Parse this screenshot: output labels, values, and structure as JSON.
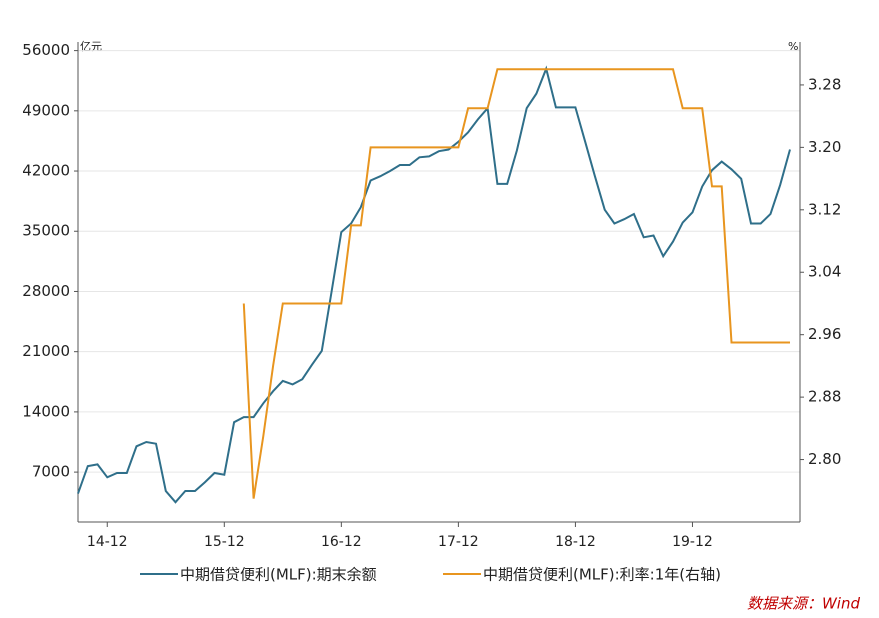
{
  "chart_data": {
    "type": "line",
    "categories": [
      null,
      null,
      null,
      "14-12",
      null,
      null,
      null,
      null,
      null,
      null,
      null,
      null,
      null,
      null,
      null,
      "15-12",
      null,
      null,
      null,
      null,
      null,
      null,
      null,
      null,
      null,
      null,
      null,
      "16-12",
      null,
      null,
      null,
      null,
      null,
      null,
      null,
      null,
      null,
      null,
      null,
      "17-12",
      null,
      null,
      null,
      null,
      null,
      null,
      null,
      null,
      null,
      null,
      null,
      "18-12",
      null,
      null,
      null,
      null,
      null,
      null,
      null,
      null,
      null,
      null,
      null,
      "19-12",
      null,
      null,
      null,
      null,
      null,
      null,
      null,
      null,
      null,
      null
    ],
    "series": [
      {
        "name": "中期借贷便利(MLF):期末余额",
        "color": "#2f6f8a",
        "axis": "y",
        "values": [
          4500,
          7700,
          7900,
          6400,
          6900,
          6900,
          10000,
          10500,
          10300,
          4800,
          3500,
          4800,
          4800,
          5800,
          6900,
          6700,
          12800,
          13400,
          13400,
          15000,
          16400,
          17600,
          17200,
          17800,
          19500,
          21100,
          28000,
          34900,
          35900,
          37800,
          40900,
          41400,
          42000,
          42700,
          42700,
          43600,
          43700,
          44300,
          44500,
          45400,
          46500,
          48000,
          49300,
          40500,
          40500,
          44400,
          49300,
          51000,
          53900,
          49400,
          49400,
          49400,
          45400,
          41400,
          37500,
          35900,
          36400,
          37000,
          34300,
          34500,
          32100,
          33800,
          36000,
          37200,
          40200,
          42100,
          43100,
          42200,
          41100,
          35900,
          35900,
          37000,
          40400,
          44500
        ]
      },
      {
        "name": "中期借贷便利(MLF):利率:1年(右轴)",
        "color": "#e8951f",
        "axis": "y2",
        "values": [
          null,
          null,
          null,
          null,
          null,
          null,
          null,
          null,
          null,
          null,
          null,
          null,
          null,
          null,
          null,
          null,
          null,
          3.0,
          2.75,
          2.83,
          2.92,
          3.0,
          3.0,
          3.0,
          3.0,
          3.0,
          3.0,
          3.0,
          3.1,
          3.1,
          3.2,
          3.2,
          3.2,
          3.2,
          3.2,
          3.2,
          3.2,
          3.2,
          3.2,
          3.2,
          3.25,
          3.25,
          3.25,
          3.3,
          3.3,
          3.3,
          3.3,
          3.3,
          3.3,
          3.3,
          3.3,
          3.3,
          3.3,
          3.3,
          3.3,
          3.3,
          3.3,
          3.3,
          3.3,
          3.3,
          3.3,
          3.3,
          3.25,
          3.25,
          3.25,
          3.15,
          3.15,
          2.95,
          2.95,
          2.95,
          2.95,
          2.95,
          2.95,
          2.95
        ]
      }
    ],
    "ylim": [
      1200,
      57000
    ],
    "yticks": [
      7000,
      14000,
      21000,
      28000,
      35000,
      42000,
      49000,
      56000
    ],
    "y2lim": [
      2.72,
      3.335
    ],
    "y2ticks": [
      {
        "value": 2.8,
        "label": "2.80"
      },
      2.88,
      2.96,
      3.04,
      3.12,
      {
        "value": 3.2,
        "label": "3.20"
      },
      3.28
    ],
    "y_unit": "亿元",
    "y2_unit": "%",
    "grid": true,
    "source": "数据来源：Wind"
  }
}
